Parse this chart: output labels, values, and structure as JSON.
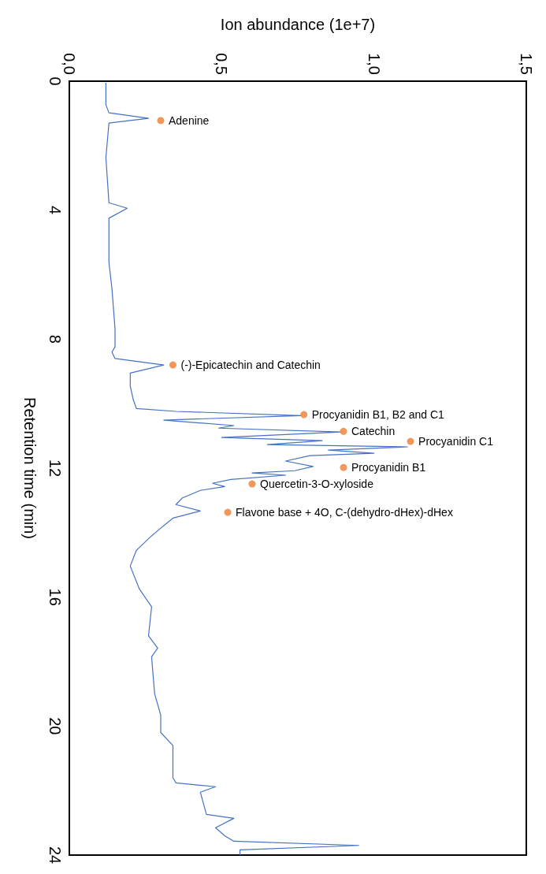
{
  "chart_data": {
    "type": "line",
    "orientation": "horizontal",
    "x2label": "Ion abundance (1e+7)",
    "ylabel": "Retention time (min)",
    "x2lim": [
      0,
      1.5
    ],
    "x2ticks": [
      {
        "value": 0,
        "label": "0,0"
      },
      {
        "value": 0.5,
        "label": "0,5"
      },
      {
        "value": 1,
        "label": "1,0"
      },
      {
        "value": 1.5,
        "label": "1,5"
      }
    ],
    "ylim": [
      24,
      0
    ],
    "yticks": [
      0,
      4,
      8,
      12,
      16,
      20,
      24
    ],
    "grid": false,
    "series": [
      {
        "axis": "x2",
        "color": "#4472c4",
        "marker": "none",
        "line_style": "solid",
        "x": [
          0.05,
          0.73,
          0.98,
          1.15,
          1.3,
          2.37,
          3.77,
          3.94,
          4.25,
          5.62,
          6.45,
          7.68,
          8.24,
          8.4,
          8.6,
          8.8,
          9.05,
          9.46,
          9.88,
          10.15,
          10.24,
          10.37,
          10.51,
          10.68,
          10.76,
          10.88,
          11.05,
          11.15,
          11.27,
          11.34,
          11.44,
          11.54,
          11.61,
          11.78,
          11.95,
          12.08,
          12.15,
          12.22,
          12.35,
          12.47,
          12.57,
          12.69,
          12.93,
          13.13,
          13.33,
          13.55,
          13.94,
          14.1,
          14.55,
          15.04,
          15.75,
          16.3,
          17.2,
          17.58,
          17.85,
          19.0,
          19.66,
          20.2,
          20.6,
          21.6,
          21.76,
          21.88,
          22.05,
          22.74,
          22.86,
          23.15,
          23.4,
          23.57,
          23.7,
          23.84,
          24.0
        ],
        "values": [
          0.12,
          0.12,
          0.13,
          0.26,
          0.13,
          0.12,
          0.13,
          0.19,
          0.13,
          0.13,
          0.14,
          0.15,
          0.15,
          0.14,
          0.15,
          0.31,
          0.2,
          0.2,
          0.21,
          0.22,
          0.35,
          0.76,
          0.31,
          0.54,
          0.49,
          0.89,
          0.5,
          0.83,
          0.65,
          1.11,
          0.85,
          1.0,
          0.79,
          0.71,
          0.8,
          0.74,
          0.6,
          0.71,
          0.53,
          0.47,
          0.51,
          0.43,
          0.37,
          0.35,
          0.43,
          0.34,
          0.29,
          0.27,
          0.22,
          0.2,
          0.23,
          0.27,
          0.26,
          0.29,
          0.27,
          0.28,
          0.3,
          0.3,
          0.34,
          0.34,
          0.35,
          0.48,
          0.43,
          0.45,
          0.54,
          0.48,
          0.51,
          0.54,
          0.95,
          0.56,
          0.56
        ]
      },
      {
        "type": "scatter",
        "axis": "x2",
        "color": "#ed7d31",
        "marker": "circle",
        "x": [
          1.22,
          8.8,
          10.34,
          10.86,
          11.17,
          11.98,
          12.49,
          13.37
        ],
        "values": [
          0.3,
          0.34,
          0.77,
          0.9,
          1.12,
          0.9,
          0.6,
          0.52
        ]
      }
    ],
    "annotations": [
      {
        "text": "Adenine",
        "x": 0.3,
        "y": 1.22
      },
      {
        "text": "(-)-Epicatechin and Catechin",
        "x": 0.34,
        "y": 8.8
      },
      {
        "text": "Procyanidin B1, B2 and C1",
        "x": 0.77,
        "y": 10.34
      },
      {
        "text": "Catechin",
        "x": 0.9,
        "y": 10.86
      },
      {
        "text": "Procyanidin C1",
        "x": 1.12,
        "y": 11.17
      },
      {
        "text": "Procyanidin B1",
        "x": 0.9,
        "y": 11.98
      },
      {
        "text": "Quercetin-3-O-xyloside",
        "x": 0.6,
        "y": 12.49
      },
      {
        "text": "Flavone base + 4O, C-(dehydro-dHex)-dHex",
        "x": 0.52,
        "y": 13.37
      }
    ]
  }
}
